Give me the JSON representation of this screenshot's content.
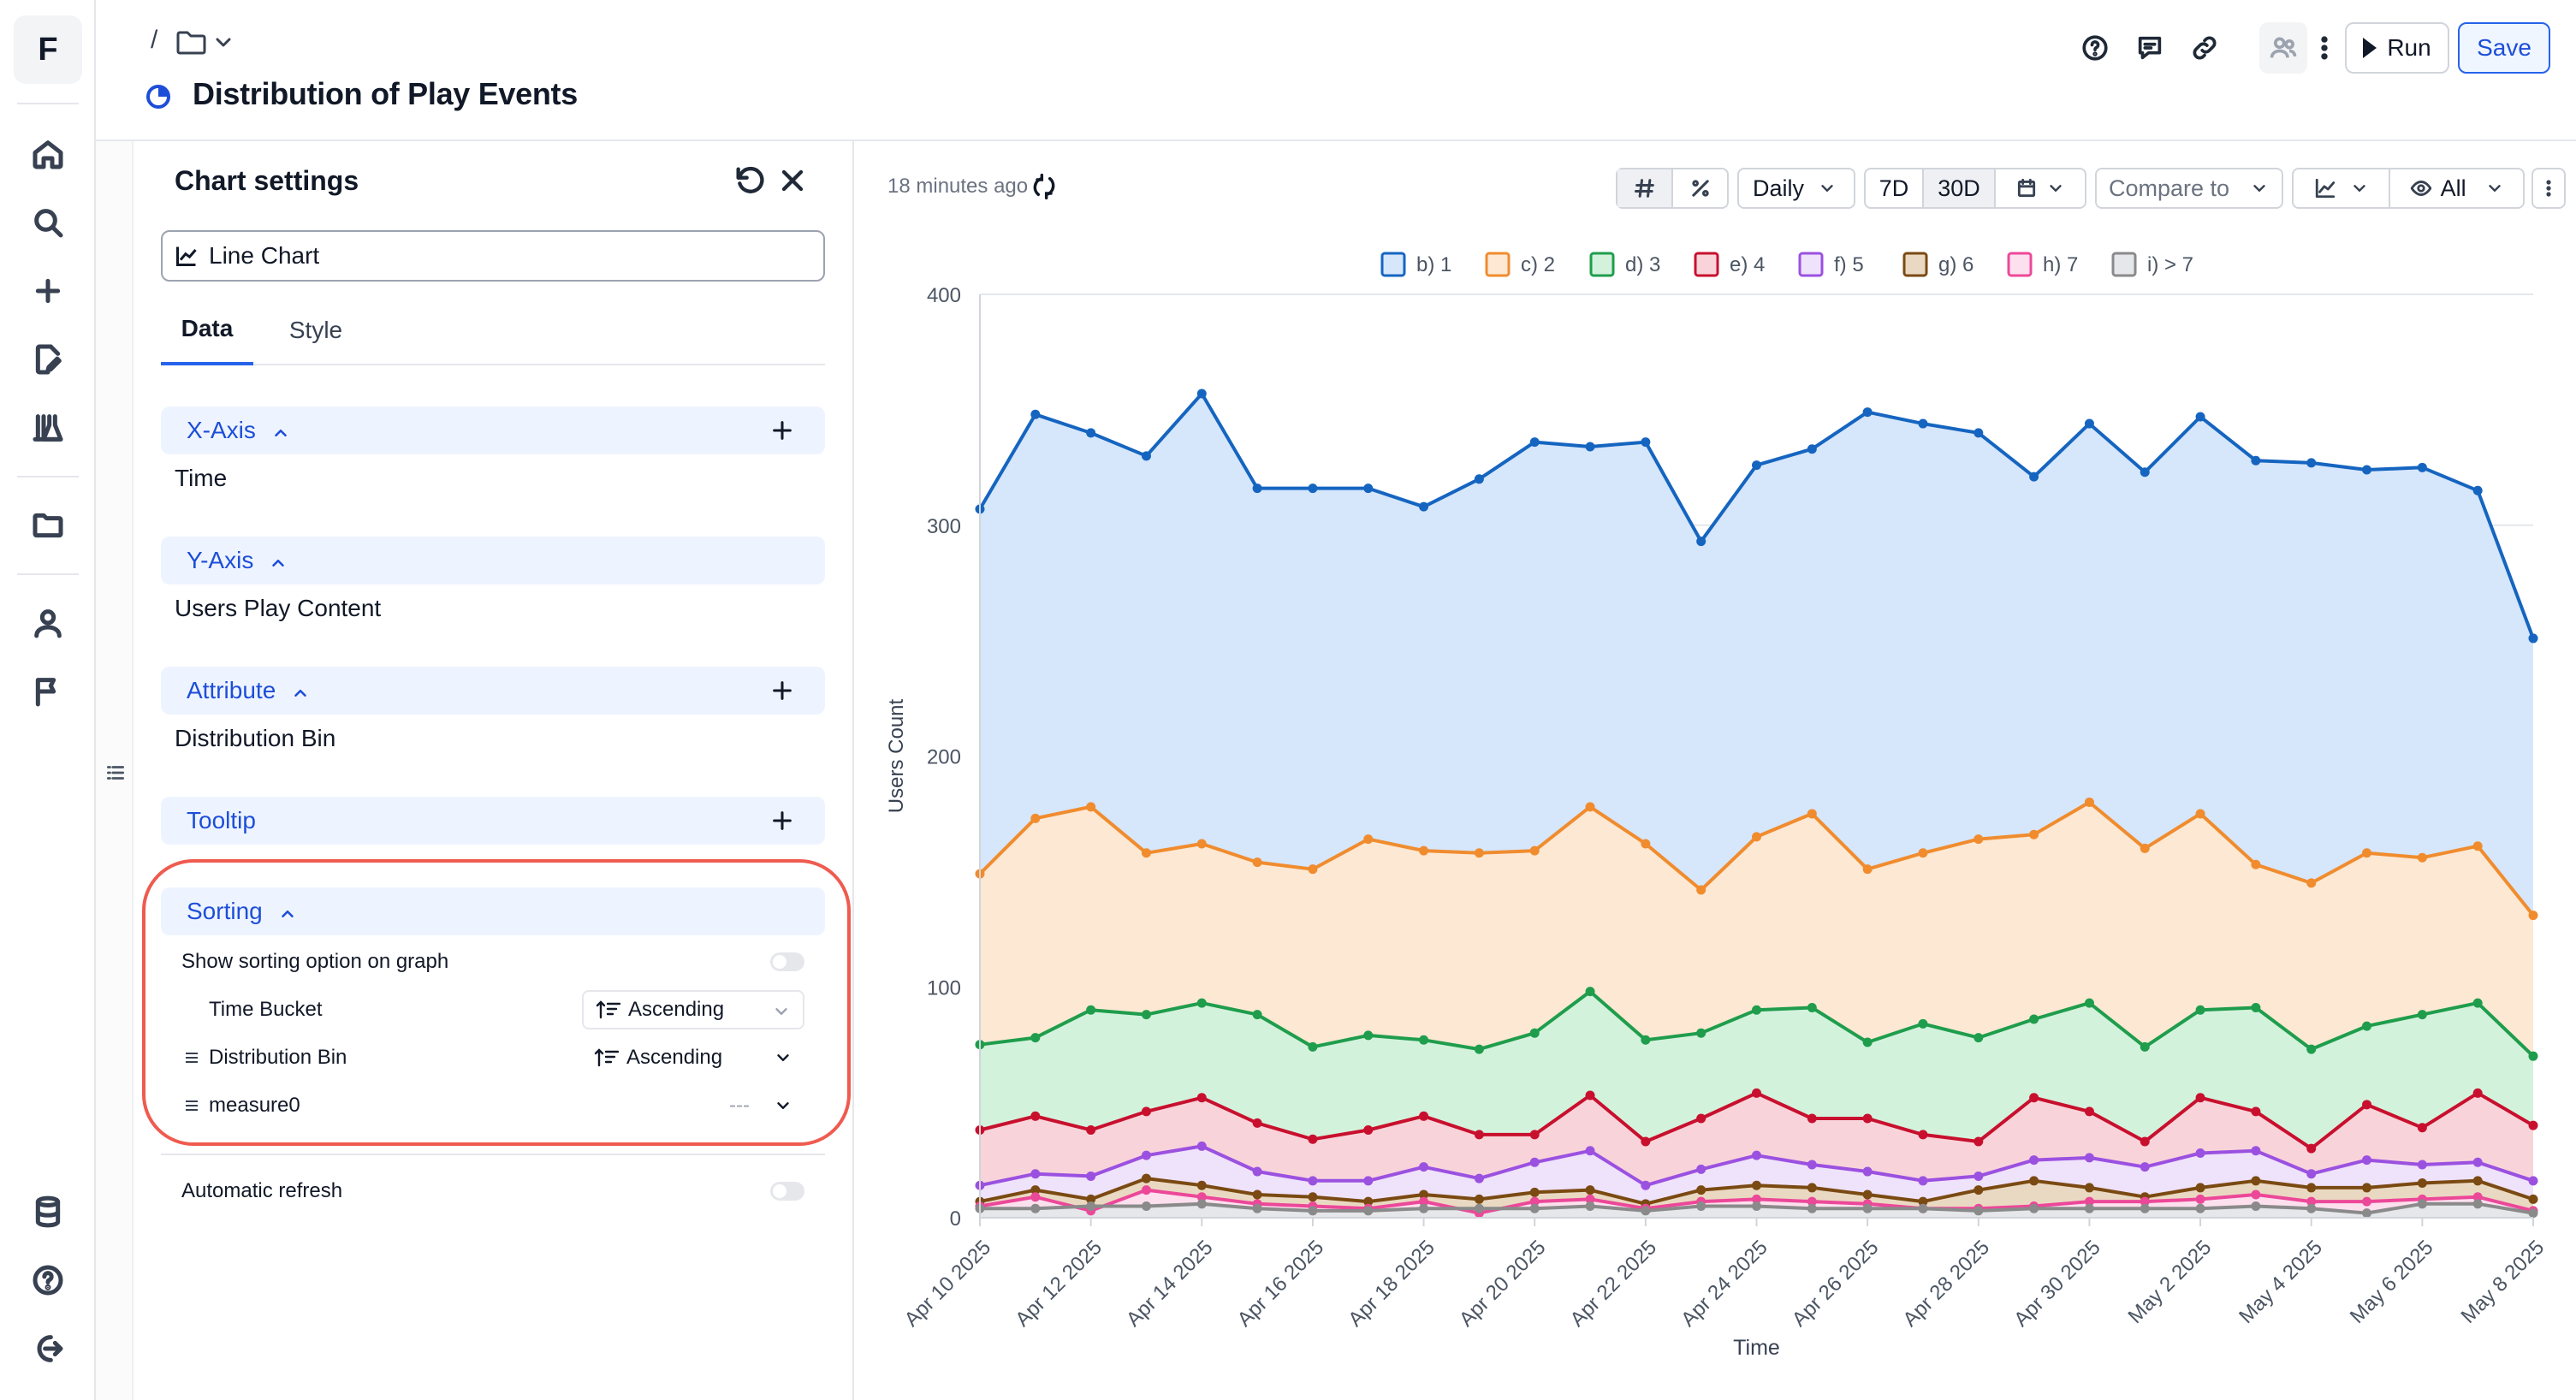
{
  "app": {
    "logo_letter": "F"
  },
  "header": {
    "breadcrumb_sep": "/",
    "title": "Distribution of Play Events",
    "run_label": "Run",
    "save_label": "Save"
  },
  "panel": {
    "title": "Chart settings",
    "chart_type": "Line Chart",
    "tabs": [
      {
        "label": "Data"
      },
      {
        "label": "Style"
      }
    ],
    "sections": {
      "x_axis": {
        "label": "X-Axis",
        "value": "Time"
      },
      "y_axis": {
        "label": "Y-Axis",
        "value": "Users Play Content"
      },
      "attribute": {
        "label": "Attribute",
        "value": "Distribution Bin"
      },
      "tooltip": {
        "label": "Tooltip"
      },
      "sorting": {
        "label": "Sorting",
        "show_option_label": "Show sorting option on graph",
        "rows": [
          {
            "name": "Time Bucket",
            "order": "Ascending"
          },
          {
            "name": "Distribution Bin",
            "order": "Ascending"
          },
          {
            "name": "measure0",
            "order": "---"
          }
        ]
      }
    },
    "auto_refresh_label": "Automatic refresh"
  },
  "toolbar": {
    "updated": "18 minutes ago",
    "granularity": "Daily",
    "range_7d": "7D",
    "range_30d": "30D",
    "compare": "Compare to",
    "visibility": "All"
  },
  "chart_data": {
    "type": "area",
    "xlabel": "Time",
    "ylabel": "Users Count",
    "ylim": [
      0,
      400
    ],
    "yticks": [
      0,
      100,
      200,
      300,
      400
    ],
    "legend_position": "top",
    "grid": true,
    "x_tick_labels": [
      "Apr 10 2025",
      "Apr 12 2025",
      "Apr 14 2025",
      "Apr 16 2025",
      "Apr 18 2025",
      "Apr 20 2025",
      "Apr 22 2025",
      "Apr 24 2025",
      "Apr 26 2025",
      "Apr 28 2025",
      "Apr 30 2025",
      "May 2 2025",
      "May 4 2025",
      "May 6 2025",
      "May 8 2025"
    ],
    "x": [
      "Apr 10 2025",
      "Apr 11 2025",
      "Apr 12 2025",
      "Apr 13 2025",
      "Apr 14 2025",
      "Apr 15 2025",
      "Apr 16 2025",
      "Apr 17 2025",
      "Apr 18 2025",
      "Apr 19 2025",
      "Apr 20 2025",
      "Apr 21 2025",
      "Apr 22 2025",
      "Apr 23 2025",
      "Apr 24 2025",
      "Apr 25 2025",
      "Apr 26 2025",
      "Apr 27 2025",
      "Apr 28 2025",
      "Apr 29 2025",
      "Apr 30 2025",
      "May 1 2025",
      "May 2 2025",
      "May 3 2025",
      "May 4 2025",
      "May 5 2025",
      "May 6 2025",
      "May 7 2025",
      "May 8 2025"
    ],
    "series": [
      {
        "name": "b) 1",
        "color": "#1565c0",
        "fill": "#d6e6fb",
        "values": [
          307,
          348,
          340,
          330,
          357,
          316,
          316,
          316,
          308,
          320,
          336,
          334,
          336,
          293,
          326,
          333,
          349,
          344,
          340,
          321,
          344,
          323,
          347,
          328,
          327,
          324,
          325,
          315,
          251
        ]
      },
      {
        "name": "c) 2",
        "color": "#f08c2e",
        "fill": "#fde8d4",
        "values": [
          149,
          173,
          178,
          158,
          162,
          154,
          151,
          164,
          159,
          158,
          159,
          178,
          162,
          142,
          165,
          175,
          151,
          158,
          164,
          166,
          180,
          160,
          175,
          153,
          145,
          158,
          156,
          161,
          131
        ]
      },
      {
        "name": "d) 3",
        "color": "#1f9d4c",
        "fill": "#d3f2dc",
        "values": [
          75,
          78,
          90,
          88,
          93,
          88,
          74,
          79,
          77,
          73,
          80,
          98,
          77,
          80,
          90,
          91,
          76,
          84,
          78,
          86,
          93,
          74,
          90,
          91,
          73,
          83,
          88,
          93,
          70
        ]
      },
      {
        "name": "e) 4",
        "color": "#c8102e",
        "fill": "#f8d4da",
        "values": [
          38,
          44,
          38,
          46,
          52,
          41,
          34,
          38,
          44,
          36,
          36,
          53,
          33,
          43,
          54,
          43,
          43,
          36,
          33,
          52,
          46,
          33,
          52,
          46,
          30,
          49,
          39,
          54,
          40
        ]
      },
      {
        "name": "f) 5",
        "color": "#9b51e0",
        "fill": "#efe2fb",
        "values": [
          14,
          19,
          18,
          27,
          31,
          20,
          16,
          16,
          22,
          17,
          24,
          29,
          14,
          21,
          27,
          23,
          20,
          16,
          18,
          25,
          26,
          22,
          28,
          29,
          19,
          25,
          23,
          24,
          16
        ]
      },
      {
        "name": "g) 6",
        "color": "#7a4a12",
        "fill": "#ead9c2",
        "values": [
          7,
          12,
          8,
          17,
          14,
          10,
          9,
          7,
          10,
          8,
          11,
          12,
          6,
          12,
          14,
          13,
          10,
          7,
          12,
          16,
          13,
          9,
          13,
          16,
          13,
          13,
          15,
          16,
          8
        ]
      },
      {
        "name": "h) 7",
        "color": "#ec4899",
        "fill": "#fde0ee",
        "values": [
          5,
          9,
          3,
          12,
          9,
          6,
          5,
          4,
          7,
          2,
          7,
          8,
          4,
          7,
          8,
          7,
          6,
          4,
          4,
          5,
          7,
          7,
          8,
          10,
          7,
          7,
          8,
          9,
          3
        ]
      },
      {
        "name": "i) > 7",
        "color": "#8a8a8a",
        "fill": "#e5e7eb",
        "values": [
          4,
          4,
          5,
          5,
          6,
          4,
          3,
          3,
          4,
          4,
          4,
          5,
          3,
          5,
          5,
          4,
          4,
          4,
          3,
          4,
          4,
          4,
          4,
          5,
          4,
          2,
          6,
          6,
          2
        ]
      }
    ]
  }
}
